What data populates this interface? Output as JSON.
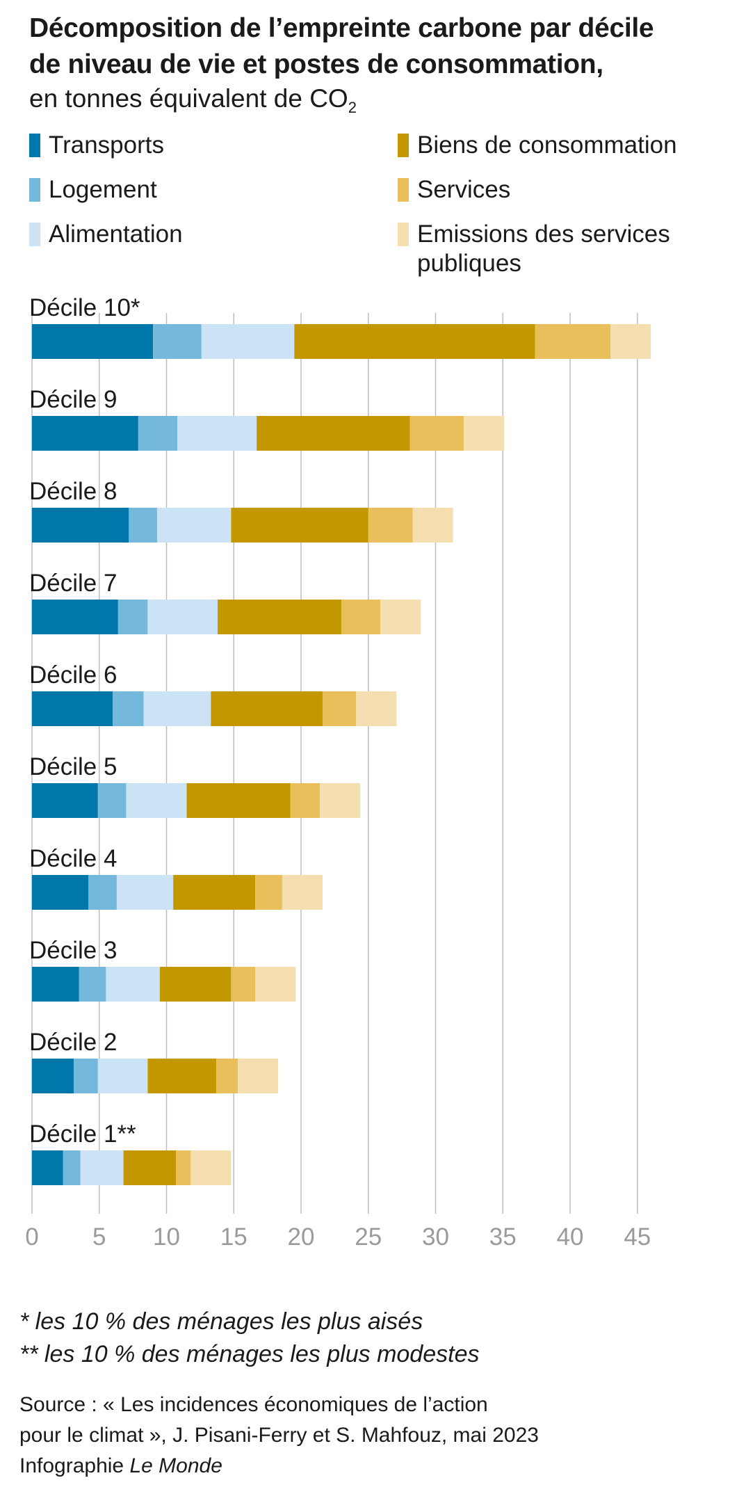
{
  "title_line1": "Décomposition de l’empreinte carbone par décile",
  "title_line2": "de niveau de vie et postes de consommation,",
  "subtitle_main": "en tonnes équivalent de CO",
  "subtitle_sub": "2",
  "colors": {
    "Transports": "#0077aa",
    "Logement": "#74b8dc",
    "Alimentation": "#cbe3f4",
    "Biens de consommation": "#c39700",
    "Services": "#e9bf5c",
    "Emissions des services publiques": "#f5dfb0",
    "gridline": "#bdbdbd"
  },
  "legend": [
    {
      "label": "Transports",
      "color": "#0077aa"
    },
    {
      "label": "Logement",
      "color": "#74b8dc"
    },
    {
      "label": "Alimentation",
      "color": "#cbe3f4"
    },
    {
      "label": "Biens de consommation",
      "color": "#c39700"
    },
    {
      "label": "Services",
      "color": "#e9bf5c"
    },
    {
      "label": "Emissions des services\npubliques",
      "color": "#f5dfb0"
    }
  ],
  "chart_data": {
    "type": "bar",
    "orientation": "horizontal",
    "stacked": true,
    "categories": [
      "Décile 10*",
      "Décile 9",
      "Décile 8",
      "Décile 7",
      "Décile 6",
      "Décile 5",
      "Décile 4",
      "Décile 3",
      "Décile 2",
      "Décile 1**"
    ],
    "series": [
      {
        "name": "Transports",
        "values": [
          9.0,
          7.9,
          7.2,
          6.4,
          6.0,
          4.9,
          4.2,
          3.5,
          3.1,
          2.3
        ]
      },
      {
        "name": "Logement",
        "values": [
          3.6,
          2.9,
          2.1,
          2.2,
          2.3,
          2.1,
          2.1,
          2.0,
          1.8,
          1.3
        ]
      },
      {
        "name": "Alimentation",
        "values": [
          6.9,
          5.9,
          5.5,
          5.2,
          5.0,
          4.5,
          4.2,
          4.0,
          3.7,
          3.2
        ]
      },
      {
        "name": "Biens de consommation",
        "values": [
          17.9,
          11.4,
          10.2,
          9.2,
          8.3,
          7.7,
          6.1,
          5.3,
          5.1,
          3.9
        ]
      },
      {
        "name": "Services",
        "values": [
          5.6,
          4.0,
          3.3,
          2.9,
          2.5,
          2.2,
          2.0,
          1.8,
          1.6,
          1.1
        ]
      },
      {
        "name": "Emissions des services publiques",
        "values": [
          3.0,
          3.0,
          3.0,
          3.0,
          3.0,
          3.0,
          3.0,
          3.0,
          3.0,
          3.0
        ]
      }
    ],
    "xlim": [
      0,
      45
    ],
    "xticks": [
      0,
      5,
      10,
      15,
      20,
      25,
      30,
      35,
      40,
      45
    ],
    "grid": "vertical"
  },
  "footnotes": [
    "* les 10 % des ménages les plus aisés",
    "** les 10 % des ménages les plus modestes"
  ],
  "source_line1": "Source : « Les incidences économiques de l’action",
  "source_line2": "pour le climat », J. Pisani-Ferry et S. Mahfouz, mai 2023",
  "credit_prefix": "Infographie ",
  "credit_italic": "Le Monde"
}
